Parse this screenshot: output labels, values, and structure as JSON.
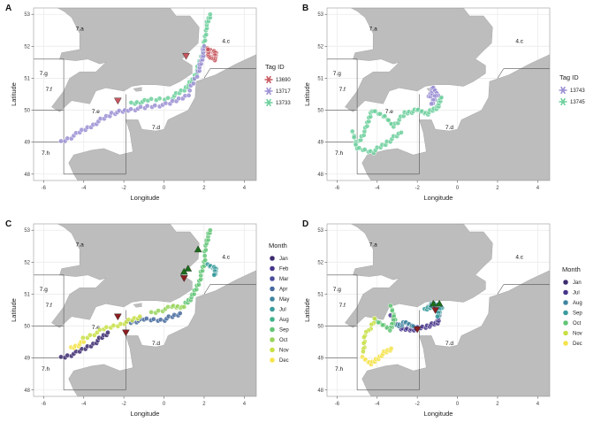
{
  "figure": {
    "panel_letters": [
      "A",
      "B",
      "C",
      "D"
    ],
    "xlabel": "Longitude",
    "ylabel": "Latitude"
  },
  "colors": {
    "sea": "#ffffff",
    "land": "#bdbdbd",
    "grid": "#ececec",
    "border": "#555555",
    "triangle_green": "#1b6e1b",
    "triangle_red": "#8b1d1d"
  },
  "chart_data": [
    {
      "type": "scatter",
      "panel": "A",
      "xlim": [
        -6.5,
        4.6
      ],
      "ylim": [
        47.8,
        53.2
      ],
      "xticks": [
        -6,
        -4,
        -2,
        0,
        2,
        4
      ],
      "yticks": [
        48,
        49,
        50,
        51,
        52,
        53
      ],
      "area_labels": [
        {
          "text": "7.a",
          "x": -4.4,
          "y": 52.5
        },
        {
          "text": "7.g",
          "x": -6.2,
          "y": 51.1
        },
        {
          "text": "7.f",
          "x": -5.9,
          "y": 50.6
        },
        {
          "text": "7.e",
          "x": -3.6,
          "y": 49.9
        },
        {
          "text": "7.d",
          "x": -0.6,
          "y": 49.4
        },
        {
          "text": "7.h",
          "x": -6.1,
          "y": 48.6
        },
        {
          "text": "4.c",
          "x": 2.9,
          "y": 52.1
        }
      ],
      "legend": {
        "title": "Tag ID",
        "entries": [
          "13690",
          "13717",
          "13733"
        ],
        "colors": [
          "#c8565e",
          "#9b8fd4",
          "#6ccf9c"
        ]
      },
      "tracks": [
        {
          "name": "13733",
          "color": "#6ccf9c",
          "path": [
            [
              -1.6,
              50.2
            ],
            [
              -0.8,
              50.3
            ],
            [
              0.4,
              50.4
            ],
            [
              1.1,
              50.7
            ],
            [
              1.5,
              51.0
            ],
            [
              1.8,
              51.5
            ],
            [
              2.0,
              52.0
            ],
            [
              2.1,
              52.6
            ],
            [
              2.3,
              53.0
            ]
          ]
        },
        {
          "name": "13717",
          "color": "#9b8fd4",
          "path": [
            [
              -5.1,
              49.0
            ],
            [
              -4.2,
              49.3
            ],
            [
              -3.4,
              49.6
            ],
            [
              -2.6,
              49.9
            ],
            [
              -1.8,
              50.0
            ],
            [
              -0.8,
              50.1
            ],
            [
              0.3,
              50.2
            ],
            [
              1.2,
              50.5
            ],
            [
              1.7,
              51.2
            ],
            [
              1.9,
              51.6
            ],
            [
              2.0,
              52.0
            ]
          ]
        },
        {
          "name": "13690",
          "color": "#c8565e",
          "path": [
            [
              2.2,
              51.9
            ],
            [
              2.6,
              51.8
            ],
            [
              2.5,
              51.6
            ],
            [
              2.2,
              51.7
            ],
            [
              2.2,
              51.9
            ]
          ]
        }
      ],
      "triangles": [
        {
          "color": "#c8565e",
          "x": 1.1,
          "y": 51.7
        },
        {
          "color": "#c8565e",
          "x": -2.3,
          "y": 50.3
        }
      ]
    },
    {
      "type": "scatter",
      "panel": "B",
      "xlim": [
        -6.5,
        4.6
      ],
      "ylim": [
        47.8,
        53.2
      ],
      "xticks": [
        -6,
        -4,
        -2,
        0,
        2,
        4
      ],
      "yticks": [
        48,
        49,
        50,
        51,
        52,
        53
      ],
      "area_labels": [
        {
          "text": "7.a",
          "x": -4.4,
          "y": 52.5
        },
        {
          "text": "7.g",
          "x": -6.2,
          "y": 51.1
        },
        {
          "text": "7.f",
          "x": -5.9,
          "y": 50.6
        },
        {
          "text": "7.e",
          "x": -3.6,
          "y": 49.9
        },
        {
          "text": "7.d",
          "x": -0.6,
          "y": 49.4
        },
        {
          "text": "7.h",
          "x": -6.1,
          "y": 48.6
        },
        {
          "text": "4.c",
          "x": 2.9,
          "y": 52.1
        }
      ],
      "legend": {
        "title": "Tag ID",
        "entries": [
          "13743",
          "13745"
        ],
        "colors": [
          "#9b8fd4",
          "#6ccf9c"
        ]
      },
      "tracks": [
        {
          "name": "13745",
          "color": "#6ccf9c",
          "path": [
            [
              -4.9,
              49.0
            ],
            [
              -4.5,
              49.5
            ],
            [
              -4.3,
              50.0
            ],
            [
              -3.6,
              49.8
            ],
            [
              -3.2,
              49.5
            ],
            [
              -2.6,
              49.9
            ],
            [
              -2.0,
              50.0
            ],
            [
              -1.5,
              49.9
            ],
            [
              -1.0,
              50.1
            ],
            [
              -0.8,
              50.4
            ]
          ]
        },
        {
          "name": "13745b",
          "color": "#6ccf9c",
          "path": [
            [
              -5.2,
              49.3
            ],
            [
              -5.0,
              48.8
            ],
            [
              -4.2,
              48.7
            ],
            [
              -3.5,
              49.0
            ],
            [
              -2.8,
              49.3
            ]
          ]
        },
        {
          "name": "13743",
          "color": "#9b8fd4",
          "path": [
            [
              -1.4,
              50.4
            ],
            [
              -1.2,
              50.7
            ],
            [
              -1.0,
              50.5
            ],
            [
              -1.3,
              50.2
            ]
          ]
        }
      ],
      "triangles": []
    },
    {
      "type": "scatter",
      "panel": "C",
      "xlim": [
        -6.5,
        4.6
      ],
      "ylim": [
        47.8,
        53.2
      ],
      "xticks": [
        -6,
        -4,
        -2,
        0,
        2,
        4
      ],
      "yticks": [
        48,
        49,
        50,
        51,
        52,
        53
      ],
      "area_labels": [
        {
          "text": "7.a",
          "x": -4.4,
          "y": 52.5
        },
        {
          "text": "7.g",
          "x": -6.2,
          "y": 51.1
        },
        {
          "text": "7.f",
          "x": -5.9,
          "y": 50.6
        },
        {
          "text": "7.e",
          "x": -3.6,
          "y": 49.9
        },
        {
          "text": "7.d",
          "x": -0.6,
          "y": 49.4
        },
        {
          "text": "7.h",
          "x": -6.1,
          "y": 48.6
        },
        {
          "text": "4.c",
          "x": 2.9,
          "y": 52.1
        }
      ],
      "legend": {
        "title": "Month",
        "entries": [
          "Jan",
          "Feb",
          "Mar",
          "Apr",
          "May",
          "Jul",
          "Aug",
          "Sep",
          "Oct",
          "Nov",
          "Dec"
        ],
        "colors": [
          "#3c2a6e",
          "#46348a",
          "#4a4b99",
          "#476a9e",
          "#3f849f",
          "#3a9b9c",
          "#40b18e",
          "#62c577",
          "#97d35a",
          "#c8df45",
          "#f5e34b"
        ]
      },
      "tracks": [
        {
          "name": "Jan",
          "color": "#3c2a6e",
          "path": [
            [
              -5.1,
              49.0
            ],
            [
              -4.2,
              49.2
            ],
            [
              -3.4,
              49.5
            ],
            [
              -2.8,
              49.8
            ]
          ]
        },
        {
          "name": "Apr",
          "color": "#476a9e",
          "path": [
            [
              -1.8,
              50.1
            ],
            [
              -1.0,
              50.2
            ],
            [
              0.0,
              50.2
            ],
            [
              0.8,
              50.4
            ]
          ]
        },
        {
          "name": "Sep",
          "color": "#62c577",
          "path": [
            [
              1.1,
              50.7
            ],
            [
              1.5,
              51.0
            ],
            [
              1.8,
              51.5
            ],
            [
              2.0,
              52.0
            ],
            [
              2.1,
              52.6
            ],
            [
              2.3,
              53.0
            ]
          ]
        },
        {
          "name": "Nov",
          "color": "#c8df45",
          "path": [
            [
              -4.0,
              49.6
            ],
            [
              -3.0,
              49.9
            ],
            [
              -2.0,
              50.1
            ],
            [
              -1.2,
              50.3
            ]
          ]
        },
        {
          "name": "Oct",
          "color": "#97d35a",
          "path": [
            [
              -0.6,
              50.4
            ],
            [
              0.4,
              50.6
            ],
            [
              1.0,
              50.6
            ]
          ]
        },
        {
          "name": "Jul",
          "color": "#3a9b9c",
          "path": [
            [
              2.2,
              51.9
            ],
            [
              2.6,
              51.8
            ],
            [
              2.5,
              51.6
            ]
          ]
        },
        {
          "name": "Dec",
          "color": "#f5e34b",
          "path": [
            [
              -4.6,
              49.3
            ],
            [
              -4.0,
              49.5
            ]
          ]
        }
      ],
      "triangles": [
        {
          "color": "#1b6e1b",
          "x": 1.7,
          "y": 52.4
        },
        {
          "color": "#1b6e1b",
          "x": 1.2,
          "y": 51.8
        },
        {
          "color": "#1b6e1b",
          "x": 1.0,
          "y": 51.7
        },
        {
          "color": "#8b1d1d",
          "x": 1.0,
          "y": 51.5
        },
        {
          "color": "#8b1d1d",
          "x": -2.3,
          "y": 50.3
        },
        {
          "color": "#8b1d1d",
          "x": -1.9,
          "y": 49.8
        }
      ]
    },
    {
      "type": "scatter",
      "panel": "D",
      "xlim": [
        -6.5,
        4.6
      ],
      "ylim": [
        47.8,
        53.2
      ],
      "xticks": [
        -6,
        -4,
        -2,
        0,
        2,
        4
      ],
      "yticks": [
        48,
        49,
        50,
        51,
        52,
        53
      ],
      "area_labels": [
        {
          "text": "7.a",
          "x": -4.4,
          "y": 52.5
        },
        {
          "text": "7.g",
          "x": -6.2,
          "y": 51.1
        },
        {
          "text": "7.f",
          "x": -5.9,
          "y": 50.6
        },
        {
          "text": "7.e",
          "x": -3.6,
          "y": 49.9
        },
        {
          "text": "7.d",
          "x": -0.6,
          "y": 49.4
        },
        {
          "text": "7.h",
          "x": -6.1,
          "y": 48.6
        },
        {
          "text": "4.c",
          "x": 2.9,
          "y": 52.1
        }
      ],
      "legend": {
        "title": "Month",
        "entries": [
          "Jan",
          "Jul",
          "Aug",
          "Sep",
          "Oct",
          "Nov",
          "Dec"
        ],
        "colors": [
          "#3c2a6e",
          "#46348a",
          "#3f849f",
          "#3a9b9c",
          "#62c577",
          "#c8df45",
          "#f5e34b"
        ]
      },
      "tracks": [
        {
          "name": "Jul",
          "color": "#46348a",
          "path": [
            [
              -3.3,
              50.3
            ],
            [
              -2.8,
              49.9
            ],
            [
              -2.2,
              49.9
            ],
            [
              -1.5,
              50.0
            ],
            [
              -1.0,
              50.1
            ],
            [
              -0.9,
              50.4
            ],
            [
              -1.1,
              50.6
            ]
          ]
        },
        {
          "name": "Sep",
          "color": "#3a9b9c",
          "path": [
            [
              -1.6,
              50.5
            ],
            [
              -1.2,
              50.7
            ],
            [
              -0.8,
              50.6
            ],
            [
              -1.0,
              50.3
            ]
          ]
        },
        {
          "name": "Aug",
          "color": "#3f849f",
          "path": [
            [
              -3.0,
              50.0
            ],
            [
              -2.6,
              50.1
            ],
            [
              -2.2,
              50.0
            ]
          ]
        },
        {
          "name": "Oct",
          "color": "#62c577",
          "path": [
            [
              -3.3,
              50.6
            ],
            [
              -3.1,
              50.2
            ],
            [
              -3.4,
              49.9
            ],
            [
              -4.1,
              50.2
            ]
          ]
        },
        {
          "name": "Nov",
          "color": "#c8df45",
          "path": [
            [
              -4.1,
              50.2
            ],
            [
              -4.6,
              49.7
            ],
            [
              -4.7,
              49.2
            ]
          ]
        },
        {
          "name": "Dec",
          "color": "#f5e34b",
          "path": [
            [
              -4.7,
              49.0
            ],
            [
              -4.3,
              48.8
            ],
            [
              -3.8,
              49.1
            ],
            [
              -3.3,
              49.3
            ]
          ]
        }
      ],
      "triangles": [
        {
          "color": "#1b6e1b",
          "x": -1.2,
          "y": 50.7
        },
        {
          "color": "#1b6e1b",
          "x": -0.9,
          "y": 50.7
        },
        {
          "color": "#8b1d1d",
          "x": -1.1,
          "y": 50.5
        },
        {
          "color": "#8b1d1d",
          "x": -2.0,
          "y": 49.9
        }
      ]
    }
  ]
}
